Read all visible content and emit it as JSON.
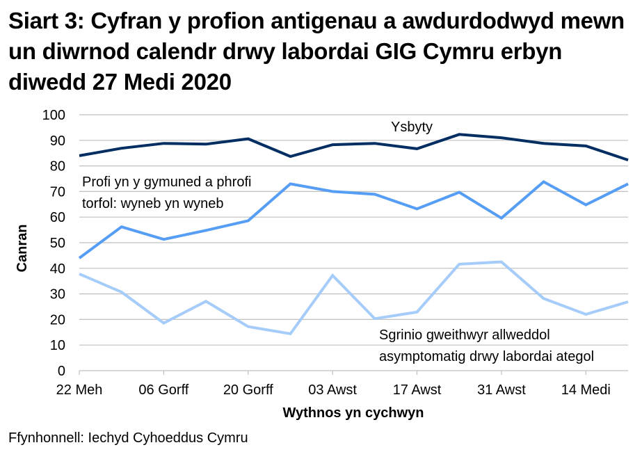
{
  "title": "Siart 3: Cyfran y profion antigenau a awdurdodwyd mewn un diwrnod calendr drwy labordai GIG Cymru erbyn diwedd 27 Medi 2020",
  "source": "Ffynhonnell: Iechyd Cyhoeddus Cymru",
  "colors": {
    "ysbyty": "#002d62",
    "profi": "#559df5",
    "sgrinio": "#a6ccfa",
    "grid": "#bfbfbf"
  },
  "chart_data": {
    "type": "line",
    "title": "Siart 3: Cyfran y profion antigenau a awdurdodwyd mewn un diwrnod calendr drwy labordai GIG Cymru erbyn diwedd 27 Medi 2020",
    "xlabel": "Wythnos yn cychwyn",
    "ylabel": "Canran",
    "ylim": [
      0,
      100
    ],
    "yticks": [
      0,
      10,
      20,
      30,
      40,
      50,
      60,
      70,
      80,
      90,
      100
    ],
    "xtick_labels": [
      "22 Meh",
      "06 Gorff",
      "20 Gorff",
      "03 Awst",
      "17 Awst",
      "31 Awst",
      "14 Medi"
    ],
    "x": [
      "22 Meh",
      "29 Meh",
      "06 Gorff",
      "13 Gorff",
      "20 Gorff",
      "27 Gorff",
      "03 Awst",
      "10 Awst",
      "17 Awst",
      "24 Awst",
      "31 Awst",
      "07 Medi",
      "14 Medi",
      "21 Medi"
    ],
    "grid": true,
    "legend": "inline labels",
    "series": [
      {
        "name": "Ysbyty",
        "label_lines": [
          "Ysbyty"
        ],
        "values": [
          84.0,
          86.9,
          88.8,
          88.5,
          90.6,
          83.7,
          88.3,
          88.8,
          86.7,
          92.3,
          91.0,
          88.8,
          87.8,
          82.3
        ]
      },
      {
        "name": "Profi yn y gymuned a phrofi torfol: wyneb yn wyneb",
        "label_lines": [
          "Profi yn y gymuned a phrofi",
          "torfol: wyneb yn wyneb"
        ],
        "values": [
          44.0,
          56.2,
          51.3,
          54.8,
          58.6,
          73.0,
          70.0,
          68.9,
          63.2,
          69.7,
          59.6,
          73.8,
          64.8,
          73.0
        ]
      },
      {
        "name": "Sgrinio gweithwyr allweddol asymptomatig drwy labordai ategol",
        "label_lines": [
          "Sgrinio gweithwyr allweddol",
          "asymptomatig drwy labordai ategol"
        ],
        "values": [
          37.8,
          30.7,
          18.6,
          27.1,
          17.2,
          14.4,
          37.2,
          20.3,
          22.9,
          41.6,
          42.5,
          28.2,
          22.0,
          26.9
        ]
      }
    ]
  }
}
